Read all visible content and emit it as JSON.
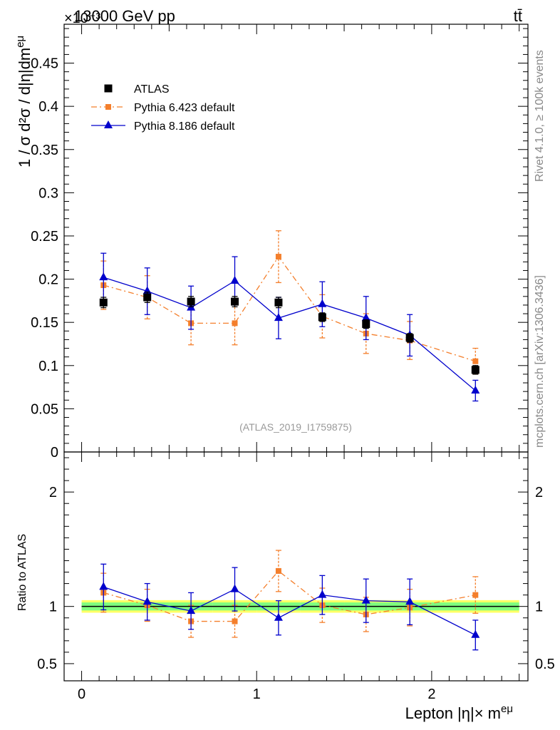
{
  "header": {
    "energy_label": "13000 GeV pp",
    "process_label": "tt̄",
    "exponent_label": "×10⁻³",
    "right_label_top": "Rivet 4.1.0, ≥ 100k events",
    "right_label_bottom": "mcplots.cern.ch [arXiv:1306.3436]",
    "analysis_label": "(ATLAS_2019_I1759875)"
  },
  "chart_data": [
    {
      "type": "scatter",
      "title": "",
      "xlabel": "Lepton |η|× m",
      "xlabel_sup": "eμ",
      "ylabel": "1 / σ  d²σ / d|η|dm",
      "ylabel_sup": "eμ",
      "xlim": [
        -0.1,
        2.55
      ],
      "ylim": [
        0,
        0.495
      ],
      "y_scale_factor": "1e-3",
      "xticks": [
        0,
        1,
        2
      ],
      "xtick_labels": [
        "0",
        "1",
        "2"
      ],
      "yticks": [
        0,
        0.05,
        0.1,
        0.15,
        0.2,
        0.25,
        0.3,
        0.35,
        0.4,
        0.45
      ],
      "ytick_labels": [
        "0",
        "0.05",
        "0.1",
        "0.15",
        "0.2",
        "0.25",
        "0.3",
        "0.35",
        "0.4",
        "0.45"
      ],
      "legend_position": "top-left",
      "x": [
        0.125,
        0.375,
        0.625,
        0.875,
        1.125,
        1.375,
        1.625,
        1.875,
        2.25
      ],
      "x_half_width": [
        0.125,
        0.125,
        0.125,
        0.125,
        0.125,
        0.125,
        0.125,
        0.125,
        0.25
      ],
      "series": [
        {
          "name": "ATLAS",
          "color": "#000000",
          "marker": "square",
          "line": "none",
          "values": [
            0.173,
            0.179,
            0.174,
            0.174,
            0.173,
            0.156,
            0.148,
            0.132,
            0.095
          ],
          "errors": [
            0.006,
            0.006,
            0.006,
            0.006,
            0.006,
            0.005,
            0.005,
            0.005,
            0.005
          ]
        },
        {
          "name": "Pythia 6.423 default",
          "color": "#f47f2c",
          "marker": "square",
          "line": "dashdot",
          "values": [
            0.193,
            0.179,
            0.149,
            0.149,
            0.226,
            0.157,
            0.137,
            0.129,
            0.105
          ],
          "errors": [
            0.028,
            0.025,
            0.025,
            0.025,
            0.03,
            0.025,
            0.023,
            0.022,
            0.015
          ]
        },
        {
          "name": "Pythia 8.186 default",
          "color": "#0000cc",
          "marker": "triangle",
          "line": "solid",
          "values": [
            0.202,
            0.186,
            0.167,
            0.198,
            0.155,
            0.171,
            0.155,
            0.135,
            0.071
          ],
          "errors": [
            0.028,
            0.027,
            0.025,
            0.028,
            0.024,
            0.026,
            0.025,
            0.024,
            0.012
          ]
        }
      ]
    },
    {
      "type": "scatter",
      "title": "",
      "xlabel": "",
      "ylabel": "Ratio to ATLAS",
      "xlim": [
        -0.1,
        2.55
      ],
      "ylim": [
        0.35,
        2.35
      ],
      "yticks": [
        0.5,
        1,
        2
      ],
      "ytick_labels": [
        "0.5",
        "1",
        "2"
      ],
      "reference_line": 1,
      "band_color_inner": "#7fff7f",
      "band_color_outer": "#ffff66",
      "band_inner": [
        [
          0.965,
          1.035
        ],
        [
          0.965,
          1.035
        ],
        [
          0.965,
          1.035
        ],
        [
          0.965,
          1.035
        ],
        [
          0.965,
          1.035
        ],
        [
          0.965,
          1.035
        ],
        [
          0.965,
          1.035
        ],
        [
          0.965,
          1.035
        ],
        [
          0.965,
          1.035
        ]
      ],
      "band_outer": [
        [
          0.945,
          1.055
        ],
        [
          0.945,
          1.055
        ],
        [
          0.945,
          1.055
        ],
        [
          0.945,
          1.055
        ],
        [
          0.945,
          1.055
        ],
        [
          0.945,
          1.055
        ],
        [
          0.945,
          1.055
        ],
        [
          0.945,
          1.055
        ],
        [
          0.945,
          1.055
        ]
      ],
      "x": [
        0.125,
        0.375,
        0.625,
        0.875,
        1.125,
        1.375,
        1.625,
        1.875,
        2.25
      ],
      "series": [
        {
          "name": "Pythia 6.423 default",
          "color": "#f47f2c",
          "line": "dashdot",
          "values": [
            1.12,
            1.01,
            0.87,
            0.87,
            1.31,
            1.01,
            0.93,
            0.99,
            1.1
          ],
          "errors": [
            0.17,
            0.14,
            0.14,
            0.14,
            0.18,
            0.15,
            0.15,
            0.16,
            0.16
          ]
        },
        {
          "name": "Pythia 8.186 default",
          "color": "#0000cc",
          "line": "solid",
          "values": [
            1.17,
            1.04,
            0.96,
            1.15,
            0.9,
            1.1,
            1.05,
            1.04,
            0.75
          ],
          "errors": [
            0.2,
            0.16,
            0.16,
            0.19,
            0.15,
            0.17,
            0.19,
            0.2,
            0.13
          ]
        }
      ]
    }
  ]
}
